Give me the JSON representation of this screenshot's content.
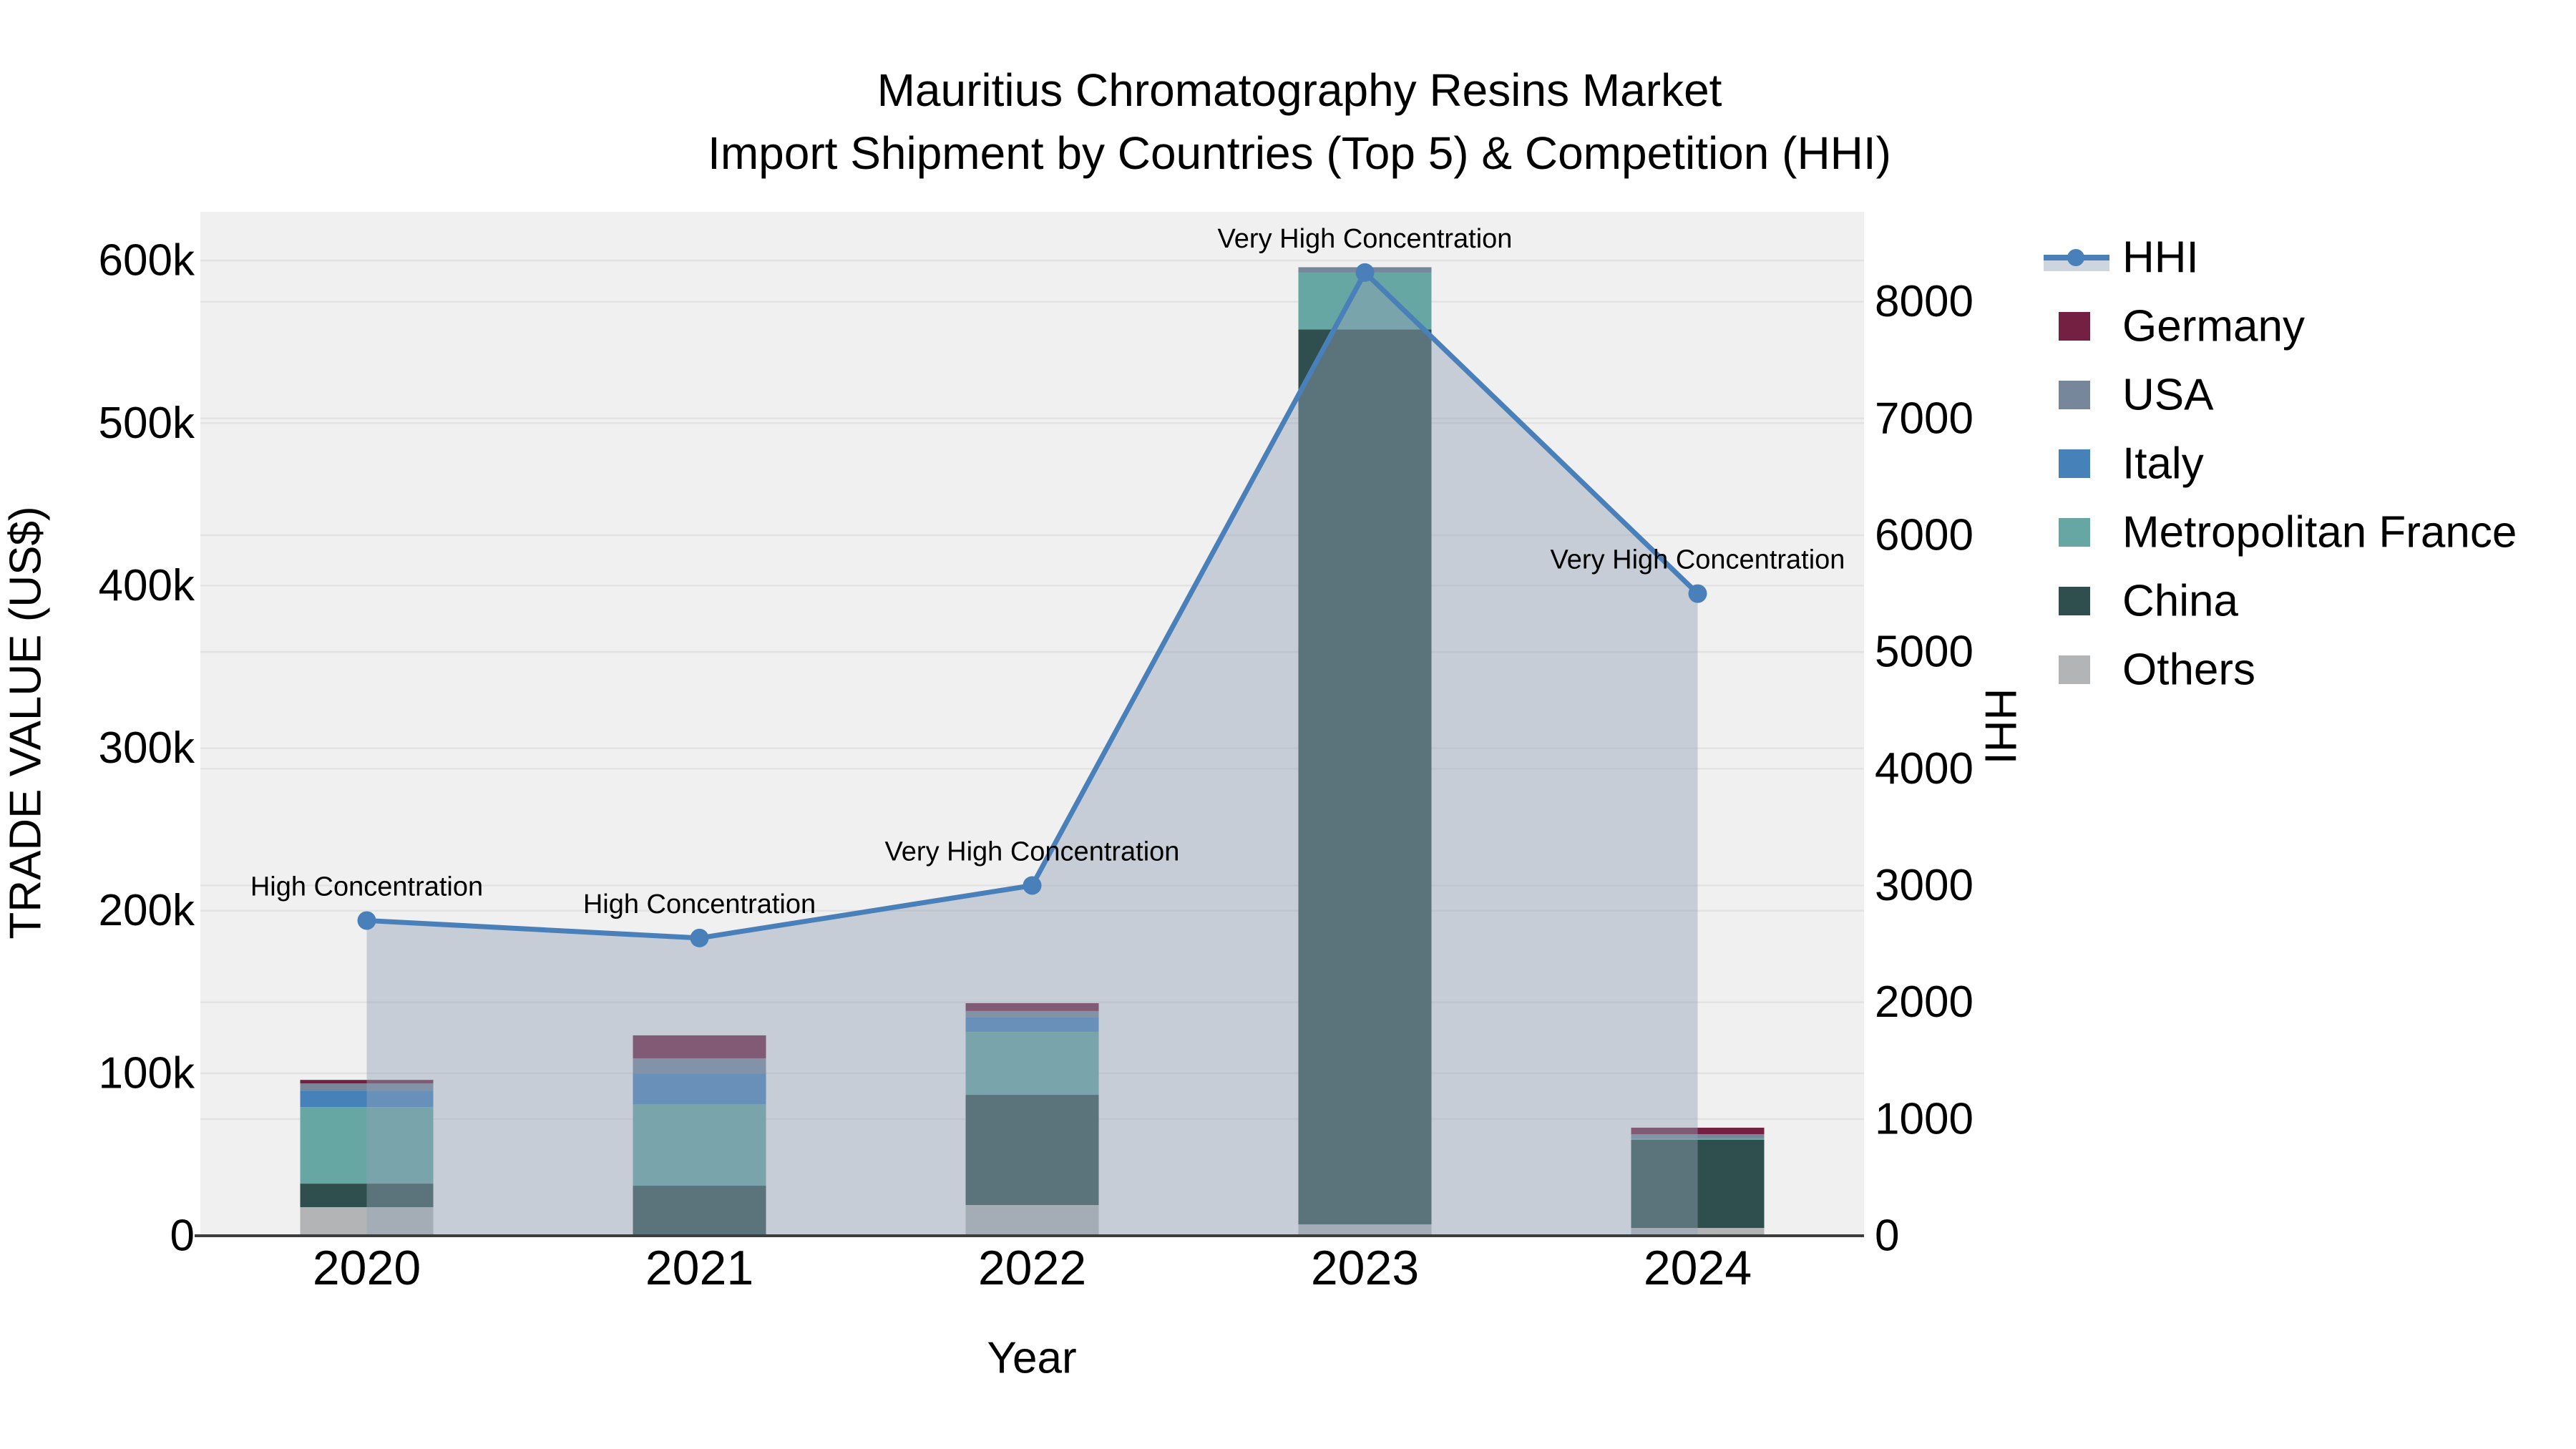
{
  "title": {
    "line1": "Mauritius Chromatography Resins Market",
    "line2": "Import Shipment by Countries (Top 5) & Competition (HHI)"
  },
  "colors": {
    "plot_bg": "#f0f0f0",
    "grid": "#e2e2e2",
    "axis_line": "#3d3d3d",
    "hhi_line": "#4a80b9",
    "hhi_area": "#93a2b5",
    "annotation_text": "#000000"
  },
  "chart_data": {
    "type": "stacked-bar+line",
    "title": "Mauritius Chromatography Resins Market — Import Shipment by Countries (Top 5) & Competition (HHI)",
    "categories": [
      "2020",
      "2021",
      "2022",
      "2023",
      "2024"
    ],
    "xlabel": "Year",
    "ylabel_left": "TRADE VALUE (US$)",
    "ylabel_right": "HHI",
    "ylim_left": [
      0,
      630000
    ],
    "ylim_right": [
      0,
      8770
    ],
    "grid": true,
    "legend_position": "right",
    "stack_order_bottom_to_top": [
      "Others",
      "China",
      "Metropolitan France",
      "Italy",
      "USA",
      "Germany"
    ],
    "series": [
      {
        "name": "Germany",
        "color": "#732042",
        "values": [
          2200,
          14100,
          4800,
          0,
          4000
        ]
      },
      {
        "name": "USA",
        "color": "#76869b",
        "values": [
          4400,
          9300,
          4000,
          3100,
          2600
        ]
      },
      {
        "name": "Italy",
        "color": "#4681ba",
        "values": [
          10100,
          18900,
          8800,
          0,
          0
        ]
      },
      {
        "name": "Metropolitan France",
        "color": "#67a7a3",
        "values": [
          47100,
          50200,
          38800,
          35200,
          900
        ]
      },
      {
        "name": "China",
        "color": "#2f4f4e",
        "values": [
          14500,
          30800,
          67800,
          550600,
          54200
        ]
      },
      {
        "name": "Others",
        "color": "#b2b4b5",
        "values": [
          17600,
          0,
          18900,
          7000,
          4800
        ]
      }
    ],
    "bar_totals": [
      95900,
      123300,
      143100,
      595900,
      66500
    ],
    "line_series": {
      "name": "HHI",
      "axis": "right",
      "color": "#4a80b9",
      "area_color": "#93a2b5",
      "values": [
        2700,
        2550,
        3000,
        8250,
        5500
      ]
    },
    "annotations": [
      {
        "category": "2020",
        "text": "High Concentration"
      },
      {
        "category": "2021",
        "text": "High Concentration"
      },
      {
        "category": "2022",
        "text": "Very High Concentration"
      },
      {
        "category": "2023",
        "text": "Very High Concentration"
      },
      {
        "category": "2024",
        "text": "Very High Concentration"
      }
    ],
    "yticks_left": {
      "values": [
        0,
        100000,
        200000,
        300000,
        400000,
        500000,
        600000
      ],
      "labels": [
        "0",
        "100k",
        "200k",
        "300k",
        "400k",
        "500k",
        "600k"
      ]
    },
    "yticks_right": {
      "values": [
        0,
        1000,
        2000,
        3000,
        4000,
        5000,
        6000,
        7000,
        8000
      ],
      "labels": [
        "0",
        "1000",
        "2000",
        "3000",
        "4000",
        "5000",
        "6000",
        "7000",
        "8000"
      ]
    }
  },
  "legend": {
    "items": [
      {
        "label": "HHI",
        "type": "line"
      },
      {
        "label": "Germany",
        "type": "swatch",
        "color": "#732042"
      },
      {
        "label": "USA",
        "type": "swatch",
        "color": "#76869b"
      },
      {
        "label": "Italy",
        "type": "swatch",
        "color": "#4681ba"
      },
      {
        "label": "Metropolitan France",
        "type": "swatch",
        "color": "#67a7a3"
      },
      {
        "label": "China",
        "type": "swatch",
        "color": "#2f4f4e"
      },
      {
        "label": "Others",
        "type": "swatch",
        "color": "#b2b4b5"
      }
    ]
  }
}
